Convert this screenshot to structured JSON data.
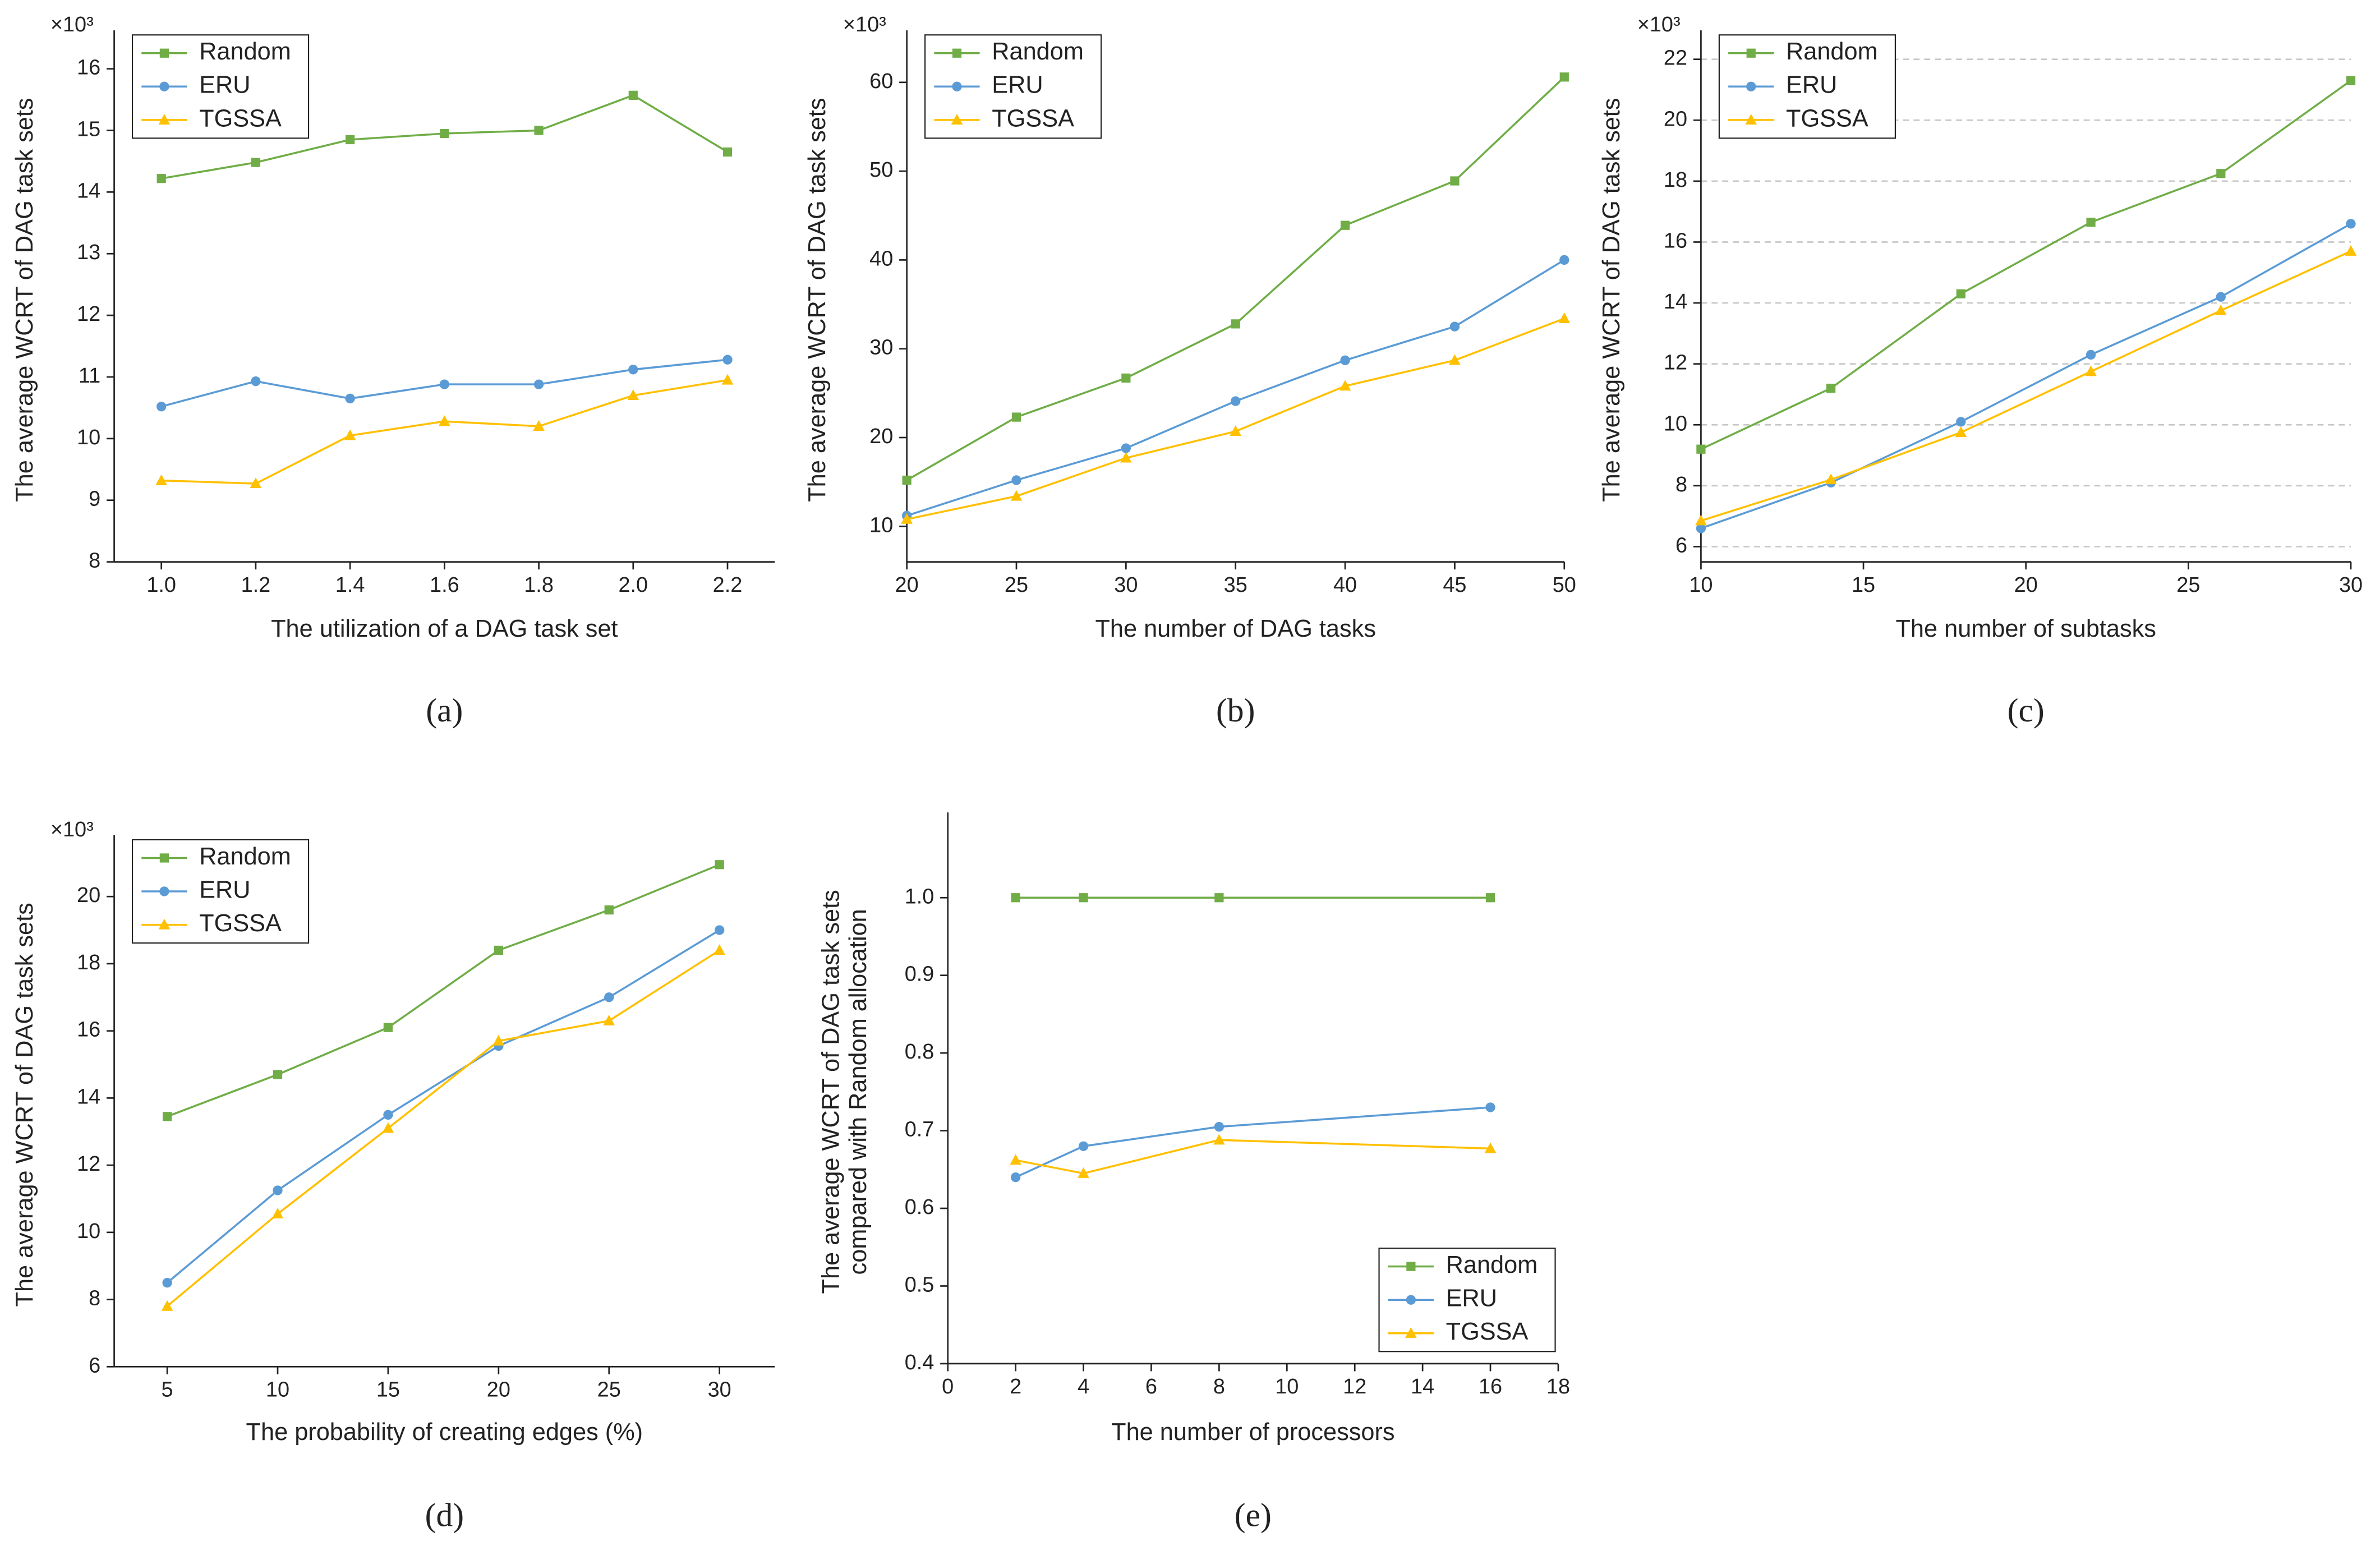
{
  "chart_data": [
    {
      "type": "line",
      "y_multiplier": "×10³",
      "panel_label": "(a)",
      "xlabel": "The utilization of a DAG task set",
      "ylabel": [
        "The average WCRT of DAG task sets"
      ],
      "x": [
        1.0,
        1.2,
        1.4,
        1.6,
        1.8,
        2.0,
        2.2
      ],
      "xlim": [
        0.9,
        2.3
      ],
      "xticks": [
        {
          "value": 1,
          "label": "1.0"
        },
        1.2,
        1.4,
        1.6,
        1.8,
        {
          "value": 2,
          "label": "2.0"
        },
        2.2
      ],
      "ylim": [
        8,
        16.5
      ],
      "yticks": [
        8,
        9,
        10,
        11,
        12,
        13,
        14,
        15,
        16
      ],
      "grid": false,
      "legend": "upper-left",
      "series": [
        {
          "name": "Random",
          "color": "#70ad47",
          "marker": "square",
          "values": [
            14.22,
            14.48,
            14.85,
            14.95,
            15.0,
            15.57,
            14.65
          ]
        },
        {
          "name": "ERU",
          "color": "#5b9bd5",
          "marker": "circle",
          "values": [
            10.52,
            10.93,
            10.65,
            10.88,
            10.88,
            11.12,
            11.28
          ]
        },
        {
          "name": "TGSSA",
          "color": "#ffc000",
          "marker": "triangle",
          "values": [
            9.32,
            9.27,
            10.05,
            10.28,
            10.2,
            10.7,
            10.95
          ]
        }
      ]
    },
    {
      "type": "line",
      "y_multiplier": "×10³",
      "panel_label": "(b)",
      "xlabel": "The number of DAG tasks",
      "ylabel": [
        "The average WCRT of DAG task sets"
      ],
      "x": [
        20,
        25,
        30,
        35,
        40,
        45,
        50
      ],
      "xlim": [
        20,
        50
      ],
      "xticks": [
        20,
        25,
        30,
        35,
        40,
        45,
        50
      ],
      "ylim": [
        6,
        65
      ],
      "yticks": [
        10,
        20,
        30,
        40,
        50,
        60
      ],
      "grid": false,
      "legend": "upper-left",
      "series": [
        {
          "name": "Random",
          "color": "#70ad47",
          "marker": "square",
          "values": [
            15.2,
            22.3,
            26.7,
            32.8,
            43.9,
            48.9,
            60.6
          ]
        },
        {
          "name": "ERU",
          "color": "#5b9bd5",
          "marker": "circle",
          "values": [
            11.2,
            15.2,
            18.8,
            24.1,
            28.7,
            32.5,
            40.0
          ]
        },
        {
          "name": "TGSSA",
          "color": "#ffc000",
          "marker": "triangle",
          "values": [
            10.8,
            13.4,
            17.7,
            20.7,
            25.8,
            28.7,
            33.4
          ]
        }
      ]
    },
    {
      "type": "line",
      "y_multiplier": "×10³",
      "panel_label": "(c)",
      "xlabel": "The number of subtasks",
      "ylabel": [
        "The average WCRT of DAG task sets"
      ],
      "x": [
        10,
        14,
        18,
        22,
        26,
        30
      ],
      "xlim": [
        10,
        30
      ],
      "xticks": [
        10,
        15,
        20,
        25,
        30
      ],
      "ylim": [
        5.5,
        22.7
      ],
      "yticks": [
        6,
        8,
        10,
        12,
        14,
        16,
        18,
        20,
        22
      ],
      "grid": true,
      "legend": "upper-left",
      "series": [
        {
          "name": "Random",
          "color": "#70ad47",
          "marker": "square",
          "values": [
            9.2,
            11.2,
            14.3,
            16.65,
            18.25,
            21.3
          ]
        },
        {
          "name": "ERU",
          "color": "#5b9bd5",
          "marker": "circle",
          "values": [
            6.6,
            8.1,
            10.1,
            12.3,
            14.2,
            16.6
          ]
        },
        {
          "name": "TGSSA",
          "color": "#ffc000",
          "marker": "triangle",
          "values": [
            6.85,
            8.2,
            9.75,
            11.75,
            13.75,
            15.7
          ]
        }
      ]
    },
    {
      "type": "line",
      "y_multiplier": "×10³",
      "panel_label": "(d)",
      "xlabel": "The probability of creating edges (%)",
      "ylabel": [
        "The average WCRT of DAG task sets"
      ],
      "x": [
        5,
        10,
        15,
        20,
        25,
        30
      ],
      "xlim": [
        2.6,
        32.5
      ],
      "xticks": [
        5,
        10,
        15,
        20,
        25,
        30
      ],
      "ylim": [
        6,
        21.6
      ],
      "yticks": [
        6,
        8,
        10,
        12,
        14,
        16,
        18,
        20
      ],
      "grid": false,
      "legend": "upper-left",
      "series": [
        {
          "name": "Random",
          "color": "#70ad47",
          "marker": "square",
          "values": [
            13.45,
            14.7,
            16.1,
            18.4,
            19.6,
            20.95
          ]
        },
        {
          "name": "ERU",
          "color": "#5b9bd5",
          "marker": "circle",
          "values": [
            8.5,
            11.25,
            13.5,
            15.55,
            17.0,
            19.0
          ]
        },
        {
          "name": "TGSSA",
          "color": "#ffc000",
          "marker": "triangle",
          "values": [
            7.8,
            10.55,
            13.1,
            15.7,
            16.3,
            18.4
          ]
        }
      ]
    },
    {
      "type": "line",
      "panel_label": "(e)",
      "xlabel": "The number of processors",
      "ylabel": [
        "The average WCRT of DAG task sets",
        "compared with Random allocation"
      ],
      "x": [
        2,
        4,
        8,
        16
      ],
      "xlim": [
        0,
        18
      ],
      "xticks": [
        0,
        2,
        4,
        6,
        8,
        10,
        12,
        14,
        16,
        18
      ],
      "ylim": [
        0.4,
        1.1
      ],
      "yticks": [
        0.4,
        0.5,
        0.6,
        0.7,
        0.8,
        0.9,
        {
          "value": 1,
          "label": "1.0"
        }
      ],
      "grid": false,
      "legend": "lower-right",
      "series": [
        {
          "name": "Random",
          "color": "#70ad47",
          "marker": "square",
          "values": [
            1,
            1,
            1,
            1
          ]
        },
        {
          "name": "ERU",
          "color": "#5b9bd5",
          "marker": "circle",
          "values": [
            0.64,
            0.68,
            0.705,
            0.73
          ]
        },
        {
          "name": "TGSSA",
          "color": "#ffc000",
          "marker": "triangle",
          "values": [
            0.662,
            0.645,
            0.688,
            0.677
          ]
        }
      ]
    }
  ]
}
